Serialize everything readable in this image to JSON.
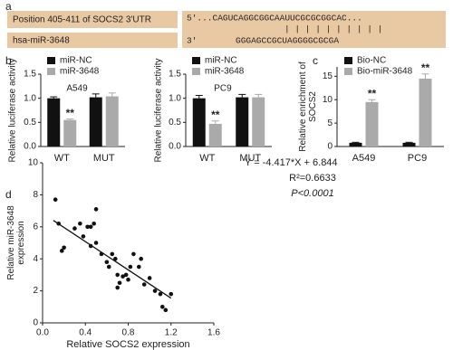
{
  "panel_a": {
    "label": "a",
    "left_rows": [
      "Position 405-411 of SOCS2 3'UTR",
      "hsa-miR-3648"
    ],
    "target": "5'...CAGUCAGGCGGCAAUUCGCGCGGCAC...",
    "pairing": "| | | |     | | | | | |",
    "mirna_end": "3'",
    "mirna": "GGGAGCCGCUAGGGGCGCGA"
  },
  "chart_data": [
    {
      "type": "bar",
      "label": "b",
      "subtitle": "A549",
      "ylabel": [
        "Relative luciferase activity"
      ],
      "categories": [
        "WT",
        "MUT"
      ],
      "series": [
        {
          "name": "miR-NC",
          "color": "#111111",
          "values": [
            1.0,
            1.02
          ],
          "errors": [
            0.03,
            0.07
          ]
        },
        {
          "name": "miR-3648",
          "color": "#aaaaaa",
          "values": [
            0.55,
            1.04
          ],
          "errors": [
            0.02,
            0.07
          ],
          "significance": [
            "**",
            null
          ]
        }
      ],
      "ylim": [
        0,
        1.5
      ],
      "yticks": [
        {
          "value": 0,
          "label": "0.0"
        },
        0.5,
        {
          "value": 1,
          "label": "1.0"
        },
        1.5
      ]
    },
    {
      "type": "bar",
      "label": null,
      "subtitle": "PC9",
      "ylabel": [
        "Relative luciferase activity"
      ],
      "categories": [
        "WT",
        "MUT"
      ],
      "series": [
        {
          "name": "miR-NC",
          "color": "#111111",
          "values": [
            1.0,
            1.02
          ],
          "errors": [
            0.06,
            0.06
          ]
        },
        {
          "name": "miR-3648",
          "color": "#aaaaaa",
          "values": [
            0.47,
            1.02
          ],
          "errors": [
            0.06,
            0.06
          ],
          "significance": [
            "**",
            null
          ]
        }
      ],
      "ylim": [
        0,
        1.5
      ],
      "yticks": [
        {
          "value": 0,
          "label": "0.0"
        },
        0.5,
        {
          "value": 1,
          "label": "1.0"
        },
        1.5
      ]
    },
    {
      "type": "bar",
      "label": "c",
      "subtitle": null,
      "ylabel": [
        "Relative enrichment of",
        "SOCS2"
      ],
      "categories": [
        "A549",
        "PC9"
      ],
      "series": [
        {
          "name": "Bio-NC",
          "color": "#111111",
          "values": [
            0.8,
            0.8
          ],
          "errors": [
            0.1,
            0.1
          ]
        },
        {
          "name": "Bio-miR-3648",
          "color": "#aaaaaa",
          "values": [
            9.5,
            14.5
          ],
          "errors": [
            0.5,
            1.0
          ],
          "significance": [
            "**",
            "**"
          ]
        }
      ],
      "ylim": [
        0,
        17
      ],
      "yticks": [
        0,
        5,
        10,
        15
      ]
    },
    {
      "type": "scatter",
      "label": "d",
      "xlabel": "Relative SOCS2 expression",
      "ylabel": [
        "Relative miR-3648",
        "expression"
      ],
      "annotations": [
        "Y = -4.417*X + 6.844",
        "R²=0.6633",
        "P<0.0001"
      ],
      "x": [
        0.12,
        0.15,
        0.2,
        0.18,
        0.3,
        0.35,
        0.38,
        0.42,
        0.45,
        0.48,
        0.5,
        0.5,
        0.55,
        0.6,
        0.62,
        0.65,
        0.68,
        0.7,
        0.72,
        0.75,
        0.78,
        0.8,
        0.82,
        0.85,
        0.9,
        0.92,
        0.95,
        1.0,
        1.05,
        1.1,
        1.12,
        1.15,
        1.2,
        0.45,
        0.7
      ],
      "y": [
        7.7,
        6.2,
        4.7,
        4.5,
        5.9,
        6.2,
        5.4,
        6.0,
        6.0,
        6.2,
        7.1,
        5.0,
        4.3,
        3.8,
        3.5,
        4.3,
        4.0,
        3.0,
        2.5,
        2.9,
        3.0,
        2.7,
        3.5,
        4.3,
        3.5,
        4.0,
        2.4,
        2.8,
        2.0,
        1.8,
        1.0,
        0.8,
        1.8,
        4.8,
        2.2
      ],
      "color": "#111111",
      "fit": {
        "slope": -4.417,
        "intercept": 6.844,
        "x": [
          0.1,
          1.2
        ]
      },
      "xlim": [
        0,
        1.6
      ],
      "xticks": [
        {
          "value": 0,
          "label": "0.0"
        },
        0.4,
        0.8,
        1.2,
        1.6
      ],
      "ylim": [
        0,
        10
      ],
      "yticks": [
        0,
        2,
        4,
        6,
        8,
        10
      ]
    }
  ]
}
